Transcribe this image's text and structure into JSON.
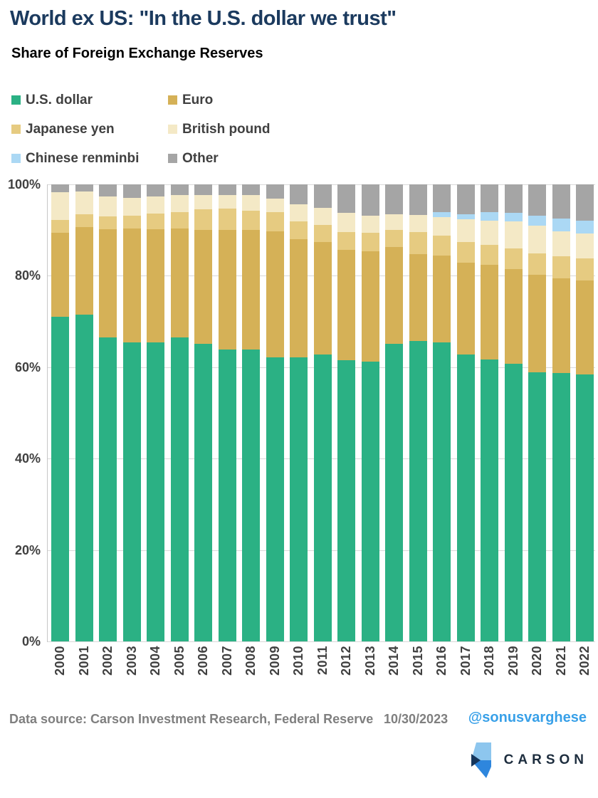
{
  "title": "World ex US: \"In the U.S. dollar we trust\"",
  "subtitle": "Share of Foreign Exchange Reserves",
  "legend": [
    {
      "label": "U.S. dollar",
      "color": "#2bb184"
    },
    {
      "label": "Euro",
      "color": "#d5b157"
    },
    {
      "label": "Japanese yen",
      "color": "#e6cb81"
    },
    {
      "label": "British pound",
      "color": "#f4e9c6"
    },
    {
      "label": "Chinese renminbi",
      "color": "#abd8f4"
    },
    {
      "label": "Other",
      "color": "#a5a5a5"
    }
  ],
  "chart_data": {
    "type": "bar",
    "subtype": "stacked-100-percent",
    "title": "Share of Foreign Exchange Reserves",
    "xlabel": "",
    "ylabel": "",
    "ylim": [
      0,
      100
    ],
    "grid": true,
    "legend_position": "top-left",
    "yticks": [
      {
        "pct": 100,
        "label": "100%"
      },
      {
        "pct": 80,
        "label": "80%"
      },
      {
        "pct": 60,
        "label": "60%"
      },
      {
        "pct": 40,
        "label": "40%"
      },
      {
        "pct": 20,
        "label": "20%"
      },
      {
        "pct": 0,
        "label": "0%"
      }
    ],
    "categories": [
      "2000",
      "2001",
      "2002",
      "2003",
      "2004",
      "2005",
      "2006",
      "2007",
      "2008",
      "2009",
      "2010",
      "2011",
      "2012",
      "2013",
      "2014",
      "2015",
      "2016",
      "2017",
      "2018",
      "2019",
      "2020",
      "2021",
      "2022"
    ],
    "series": [
      {
        "name": "U.S. dollar",
        "color": "#2bb184",
        "values": [
          71.1,
          71.5,
          66.5,
          65.4,
          65.5,
          66.5,
          65.1,
          63.9,
          63.8,
          62.1,
          62.2,
          62.7,
          61.5,
          61.2,
          65.1,
          65.7,
          65.4,
          62.7,
          61.7,
          60.8,
          58.9,
          58.8,
          58.4
        ]
      },
      {
        "name": "Euro",
        "color": "#d5b157",
        "values": [
          18.3,
          19.2,
          23.7,
          25.0,
          24.7,
          23.9,
          25.0,
          26.1,
          26.2,
          27.7,
          25.8,
          24.7,
          24.1,
          24.2,
          21.2,
          19.1,
          19.1,
          20.2,
          20.7,
          20.6,
          21.3,
          20.6,
          20.5
        ]
      },
      {
        "name": "Japanese yen",
        "color": "#e6cb81",
        "values": [
          2.8,
          2.7,
          2.8,
          2.8,
          3.4,
          3.6,
          4.4,
          4.7,
          4.2,
          4.2,
          3.9,
          3.8,
          4.0,
          4.0,
          3.7,
          4.7,
          4.3,
          4.5,
          4.4,
          4.6,
          4.7,
          4.8,
          4.9
        ]
      },
      {
        "name": "British pound",
        "color": "#f4e9c6",
        "values": [
          6.1,
          5.0,
          4.4,
          3.9,
          3.8,
          3.6,
          3.1,
          2.9,
          3.5,
          2.9,
          3.7,
          3.6,
          4.1,
          3.8,
          3.5,
          3.8,
          4.0,
          4.9,
          5.2,
          5.9,
          6.0,
          5.5,
          5.5
        ]
      },
      {
        "name": "Chinese renminbi",
        "color": "#abd8f4",
        "values": [
          0,
          0,
          0,
          0,
          0,
          0,
          0,
          0,
          0,
          0,
          0,
          0,
          0,
          0,
          0,
          0,
          1.1,
          1.2,
          1.9,
          1.9,
          2.3,
          2.8,
          2.7
        ]
      },
      {
        "name": "Other",
        "color": "#a5a5a5",
        "values": [
          1.7,
          1.6,
          2.6,
          2.9,
          2.6,
          2.4,
          2.4,
          2.4,
          2.3,
          3.1,
          4.4,
          5.2,
          6.3,
          6.8,
          6.5,
          6.7,
          6.1,
          6.5,
          6.1,
          6.2,
          6.8,
          7.5,
          8.0
        ]
      }
    ]
  },
  "footer": {
    "source": "Data source: Carson Investment Research, Federal Reserve",
    "date": "10/30/2023",
    "handle": "@sonusvarghese",
    "logo_text": "CARSON"
  }
}
